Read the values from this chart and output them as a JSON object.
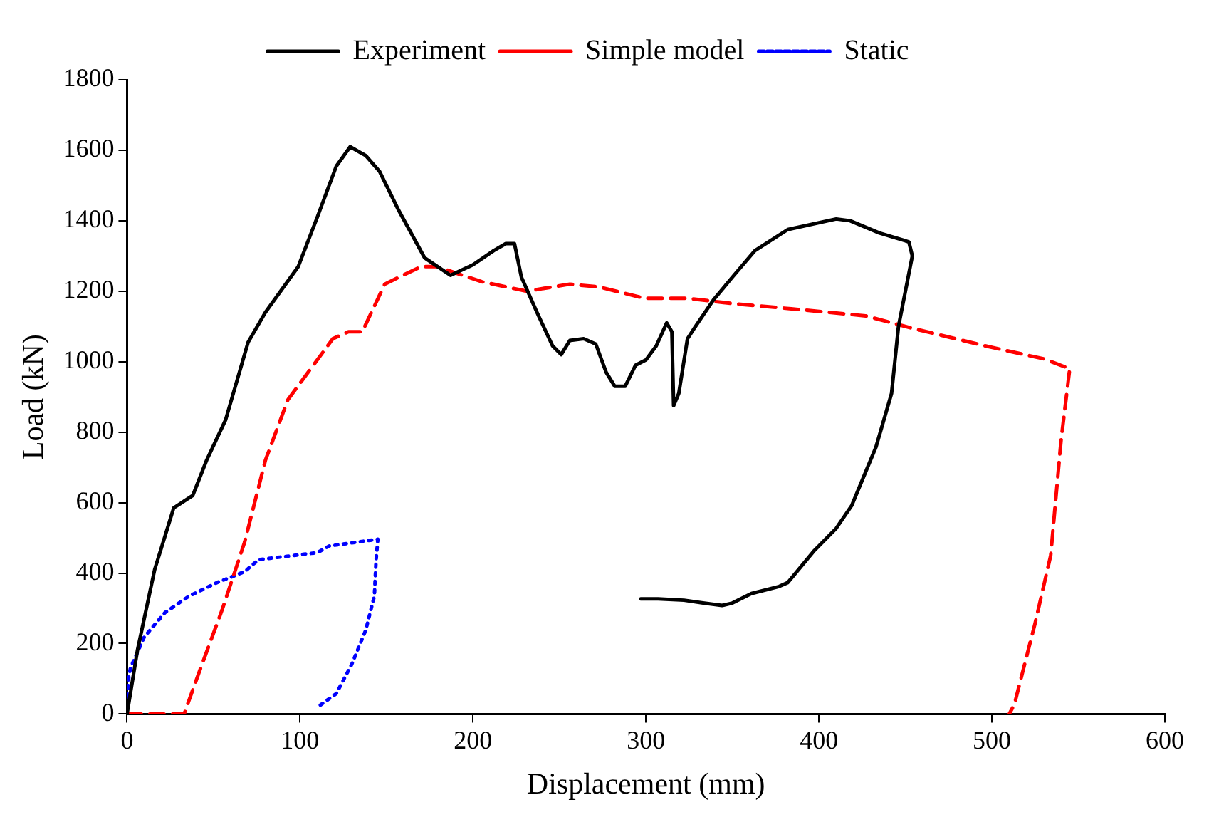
{
  "chart_data": {
    "type": "line",
    "xlabel": "Displacement (mm)",
    "ylabel": "Load (kN)",
    "xlim": [
      0,
      600
    ],
    "xticks": [
      0,
      100,
      200,
      300,
      400,
      500,
      600
    ],
    "ylim": [
      0,
      1800
    ],
    "yticks": [
      0,
      200,
      400,
      600,
      800,
      1000,
      1200,
      1400,
      1600,
      1800
    ],
    "grid": false,
    "legend": "top",
    "marker": "none",
    "series": [
      {
        "name": "Experiment",
        "color": "#000000",
        "line_style": "solid",
        "x": [
          0,
          6,
          16,
          27,
          38,
          46,
          57,
          70,
          80,
          99,
          110,
          121,
          129,
          138,
          146,
          157,
          172,
          187,
          200,
          212,
          219,
          224,
          228,
          237,
          246,
          251,
          256,
          264,
          271,
          277,
          282,
          288,
          294,
          300,
          306,
          312,
          315,
          316,
          319,
          324,
          328,
          339,
          350,
          363,
          382,
          410,
          418,
          435,
          452,
          454,
          446,
          442,
          433,
          419,
          410,
          397,
          382,
          377,
          361,
          350,
          344,
          333,
          322,
          307,
          297
        ],
        "values": [
          0,
          180,
          410,
          585,
          620,
          720,
          835,
          1055,
          1140,
          1270,
          1410,
          1555,
          1610,
          1585,
          1540,
          1430,
          1295,
          1245,
          1275,
          1315,
          1335,
          1335,
          1240,
          1140,
          1045,
          1020,
          1060,
          1065,
          1050,
          970,
          930,
          930,
          990,
          1005,
          1045,
          1110,
          1085,
          875,
          910,
          1065,
          1095,
          1175,
          1240,
          1315,
          1375,
          1405,
          1400,
          1365,
          1340,
          1300,
          1100,
          910,
          758,
          592,
          527,
          462,
          373,
          362,
          342,
          315,
          308,
          315,
          323,
          327,
          327
        ]
      },
      {
        "name": "Simple model",
        "color": "#ff0000",
        "line_style": "dashed",
        "x": [
          0,
          33,
          42,
          55,
          68,
          80,
          93,
          119,
          128,
          136,
          149,
          170,
          179,
          205,
          231,
          256,
          273,
          299,
          324,
          350,
          384,
          427,
          453,
          495,
          530,
          545,
          540,
          534,
          525,
          513,
          510
        ],
        "values": [
          0,
          0,
          123,
          296,
          488,
          720,
          892,
          1065,
          1085,
          1085,
          1220,
          1270,
          1270,
          1227,
          1200,
          1220,
          1212,
          1180,
          1180,
          1165,
          1150,
          1130,
          1096,
          1046,
          1008,
          980,
          777,
          450,
          258,
          27,
          0
        ]
      },
      {
        "name": "Static",
        "color": "#0000ff",
        "line_style": "dotted",
        "x": [
          0,
          1,
          2,
          10,
          22,
          36,
          52,
          68,
          76,
          110,
          117,
          145,
          144,
          143,
          138,
          130,
          121,
          110
        ],
        "values": [
          0,
          104,
          131,
          219,
          288,
          335,
          373,
          404,
          438,
          458,
          477,
          496,
          438,
          335,
          238,
          142,
          58,
          19
        ]
      }
    ]
  }
}
